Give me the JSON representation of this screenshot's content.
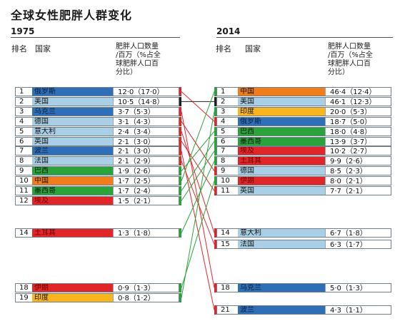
{
  "title": "全球女性肥胖人群变化",
  "left": {
    "year": "1975",
    "col_rank": "排名",
    "col_country": "国家",
    "col_value": "肥胖人口数量\n/百万（%占全\n球肥胖人口百\n分比）"
  },
  "right": {
    "year": "2014",
    "col_rank": "排名",
    "col_country": "国家",
    "col_value": "肥胖人口数量\n/百万（%占全\n球肥胖人口百\n分比）"
  },
  "colors": {
    "dark_blue": "#2f6fb8",
    "light_blue": "#a9cfe6",
    "green": "#29a33a",
    "red": "#e1262a",
    "orange": "#f07d1a",
    "yellow": "#f8b51d",
    "grey_line": "#222222"
  },
  "chart_data": {
    "type": "table",
    "title": "全球女性肥胖人群变化",
    "years": [
      "1975",
      "2014"
    ],
    "rows_1975": [
      {
        "rank": 1,
        "country": "俄罗斯",
        "value": "12·0（17·0）",
        "millions": 12.0,
        "share": 17.0,
        "color": "dark_blue"
      },
      {
        "rank": 2,
        "country": "美国",
        "value": "10·5（14·8）",
        "millions": 10.5,
        "share": 14.8,
        "color": "light_blue"
      },
      {
        "rank": 3,
        "country": "乌克兰",
        "value": "3·7（5·3）",
        "millions": 3.7,
        "share": 5.3,
        "color": "dark_blue"
      },
      {
        "rank": 4,
        "country": "德国",
        "value": "3·1（4·3）",
        "millions": 3.1,
        "share": 4.3,
        "color": "light_blue"
      },
      {
        "rank": 5,
        "country": "意大利",
        "value": "2·4（3·4）",
        "millions": 2.4,
        "share": 3.4,
        "color": "light_blue"
      },
      {
        "rank": 6,
        "country": "英国",
        "value": "2·1（3·0）",
        "millions": 2.1,
        "share": 3.0,
        "color": "light_blue"
      },
      {
        "rank": 7,
        "country": "波兰",
        "value": "2·1（3·0）",
        "millions": 2.1,
        "share": 3.0,
        "color": "dark_blue"
      },
      {
        "rank": 8,
        "country": "法国",
        "value": "2·1（2·9）",
        "millions": 2.1,
        "share": 2.9,
        "color": "light_blue"
      },
      {
        "rank": 9,
        "country": "巴西",
        "value": "1·9（2·6）",
        "millions": 1.9,
        "share": 2.6,
        "color": "green"
      },
      {
        "rank": 10,
        "country": "中国",
        "value": "1·7（2·5）",
        "millions": 1.7,
        "share": 2.5,
        "color": "orange"
      },
      {
        "rank": 11,
        "country": "墨西哥",
        "value": "1·7（2·4）",
        "millions": 1.7,
        "share": 2.4,
        "color": "green"
      },
      {
        "rank": 12,
        "country": "埃及",
        "value": "1·5（2·1）",
        "millions": 1.5,
        "share": 2.1,
        "color": "red"
      },
      {
        "rank": 14,
        "country": "土耳其",
        "value": "1·3（1·8）",
        "millions": 1.3,
        "share": 1.8,
        "color": "red"
      },
      {
        "rank": 18,
        "country": "伊朗",
        "value": "0·9（1·3）",
        "millions": 0.9,
        "share": 1.3,
        "color": "red"
      },
      {
        "rank": 19,
        "country": "印度",
        "value": "0·8（1·2）",
        "millions": 0.8,
        "share": 1.2,
        "color": "yellow"
      }
    ],
    "rows_2014": [
      {
        "rank": 1,
        "country": "中国",
        "value": "46·4（12·4）",
        "millions": 46.4,
        "share": 12.4,
        "color": "orange"
      },
      {
        "rank": 2,
        "country": "美国",
        "value": "46·1（12·3）",
        "millions": 46.1,
        "share": 12.3,
        "color": "light_blue"
      },
      {
        "rank": 3,
        "country": "印度",
        "value": "20·0（5·3）",
        "millions": 20.0,
        "share": 5.3,
        "color": "yellow"
      },
      {
        "rank": 4,
        "country": "俄罗斯",
        "value": "18·7（5·0）",
        "millions": 18.7,
        "share": 5.0,
        "color": "dark_blue"
      },
      {
        "rank": 5,
        "country": "巴西",
        "value": "18·0（4·8）",
        "millions": 18.0,
        "share": 4.8,
        "color": "green"
      },
      {
        "rank": 6,
        "country": "墨西哥",
        "value": "13·9（3·7）",
        "millions": 13.9,
        "share": 3.7,
        "color": "green"
      },
      {
        "rank": 7,
        "country": "埃及",
        "value": "10·2（2·7）",
        "millions": 10.2,
        "share": 2.7,
        "color": "red"
      },
      {
        "rank": 8,
        "country": "土耳其",
        "value": "9·9（2·6）",
        "millions": 9.9,
        "share": 2.6,
        "color": "red"
      },
      {
        "rank": 9,
        "country": "德国",
        "value": "8·5（2·3）",
        "millions": 8.5,
        "share": 2.3,
        "color": "light_blue"
      },
      {
        "rank": 10,
        "country": "伊朗",
        "value": "8·0（2·1）",
        "millions": 8.0,
        "share": 2.1,
        "color": "red"
      },
      {
        "rank": 11,
        "country": "英国",
        "value": "7·7（2·1）",
        "millions": 7.7,
        "share": 2.1,
        "color": "light_blue"
      },
      {
        "rank": 14,
        "country": "意大利",
        "value": "6·7（1·8）",
        "millions": 6.7,
        "share": 1.8,
        "color": "light_blue"
      },
      {
        "rank": 15,
        "country": "法国",
        "value": "6·3（1·7）",
        "millions": 6.3,
        "share": 1.7,
        "color": "light_blue"
      },
      {
        "rank": 18,
        "country": "乌克兰",
        "value": "5·0（1·3）",
        "millions": 5.0,
        "share": 1.3,
        "color": "dark_blue"
      },
      {
        "rank": 21,
        "country": "波兰",
        "value": "4·3（1·1）",
        "millions": 4.3,
        "share": 1.1,
        "color": "dark_blue"
      }
    ]
  }
}
